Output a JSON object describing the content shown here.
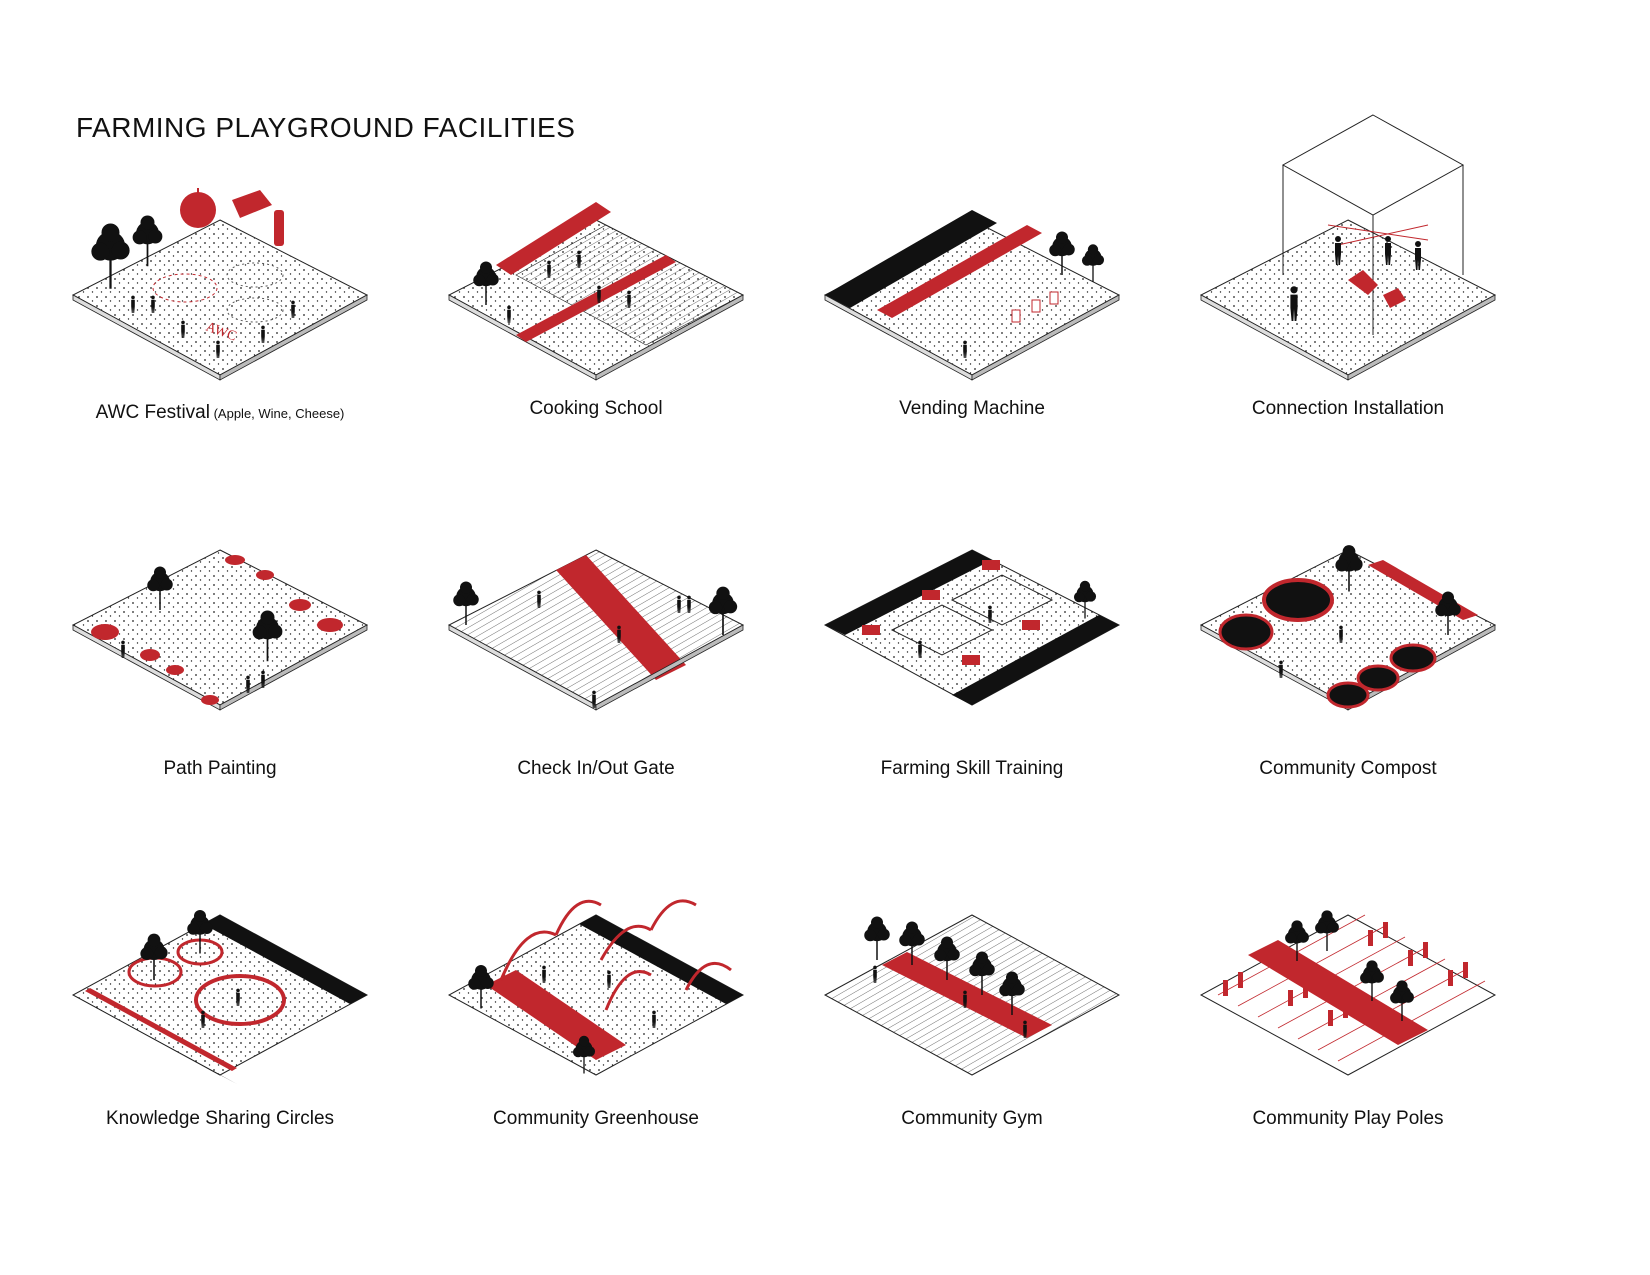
{
  "page": {
    "title": "FARMING PLAYGROUND FACILITIES"
  },
  "colors": {
    "accent": "#c1272d",
    "ink": "#111111",
    "ground": "#ffffff"
  },
  "facilities": [
    {
      "label": "AWC Festival",
      "label_suffix": " (Apple, Wine, Cheese)",
      "icon": "festival-icon"
    },
    {
      "label": "Cooking School",
      "icon": "cooking-school-icon"
    },
    {
      "label": "Vending Machine",
      "icon": "vending-machine-icon"
    },
    {
      "label": "Connection Installation",
      "icon": "connection-installation-icon"
    },
    {
      "label": "Path Painting",
      "icon": "path-painting-icon"
    },
    {
      "label": "Check In/Out Gate",
      "icon": "gate-icon"
    },
    {
      "label": "Farming Skill Training",
      "icon": "training-icon"
    },
    {
      "label": "Community Compost",
      "icon": "compost-icon"
    },
    {
      "label": "Knowledge Sharing Circles",
      "icon": "sharing-circles-icon"
    },
    {
      "label": "Community Greenhouse",
      "icon": "greenhouse-icon"
    },
    {
      "label": "Community Gym",
      "icon": "gym-icon"
    },
    {
      "label": "Community Play Poles",
      "icon": "play-poles-icon"
    }
  ]
}
